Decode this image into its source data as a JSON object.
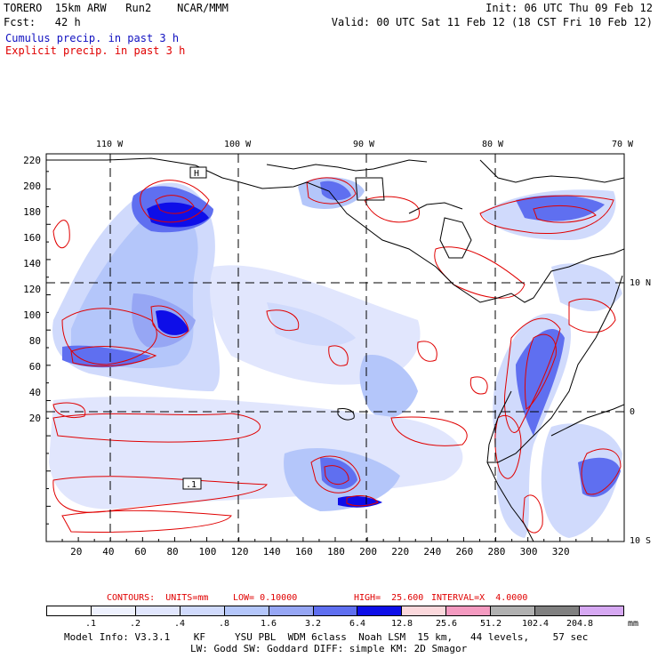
{
  "header": {
    "line1_left": "TORERO  15km ARW   Run2    NCAR/MMM",
    "line1_right": "Init: 06 UTC Thu 09 Feb 12",
    "line2_left": "Fcst:   42 h",
    "line2_right": "Valid: 00 UTC Sat 11 Feb 12 (18 CST Fri 10 Feb 12)",
    "field1": "Cumulus precip. in past 3 h",
    "field2": "Explicit precip. in past 3 h",
    "field1_color": "#1010c0",
    "field2_color": "#e00000"
  },
  "axes": {
    "top_labels": [
      "110 W",
      "100 W",
      "90 W",
      "80 W",
      "70 W"
    ],
    "right_labels": [
      "10 N",
      "0",
      "10 S"
    ],
    "left_ticks": [
      "220",
      "200",
      "180",
      "160",
      "140",
      "120",
      "100",
      "80",
      "60",
      "40",
      "20"
    ],
    "bottom_ticks": [
      "20",
      "40",
      "60",
      "80",
      "100",
      "120",
      "140",
      "160",
      "180",
      "200",
      "220",
      "240",
      "260",
      "280",
      "300",
      "320"
    ]
  },
  "map_labels": {
    "high_a": "H",
    "low_b": "L",
    "box1": ".1"
  },
  "contour_info": {
    "units_label": "CONTOURS:  UNITS=mm",
    "low_label": "LOW= 0.10000",
    "high_label": "HIGH=  25.600",
    "interval_label": "INTERVAL=X  4.0000",
    "color": "#e00000"
  },
  "legend": {
    "levels": [
      ".1",
      ".2",
      ".4",
      ".8",
      "1.6",
      "3.2",
      "6.4",
      "12.8",
      "25.6",
      "51.2",
      "102.4",
      "204.8"
    ],
    "colors": [
      "#ffffff",
      "#eef1fe",
      "#e1e6fd",
      "#d0dafc",
      "#b4c6fa",
      "#96a6f4",
      "#5f6ff0",
      "#0e0ee8",
      "#fbd8dc",
      "#f49ac0",
      "#b0b0b0",
      "#808080",
      "#d6a8f2"
    ],
    "unit": "mm"
  },
  "footer": {
    "line1": "Model Info: V3.3.1    KF     YSU PBL  WDM 6class  Noah LSM  15 km,   44 levels,    57 sec",
    "line2": "LW: Godd SW: Goddard DIFF: simple KM: 2D Smagor"
  }
}
